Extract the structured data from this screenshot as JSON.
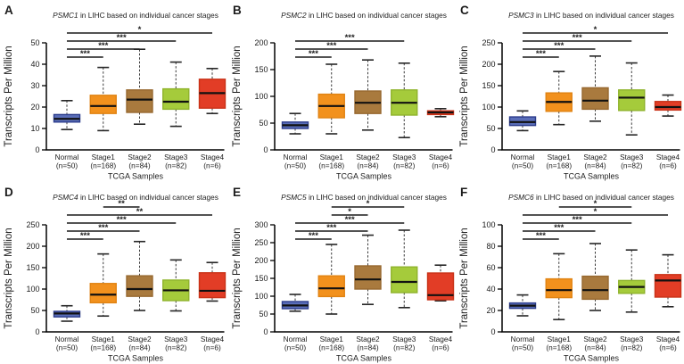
{
  "figure": {
    "background": "#ffffff",
    "ylabel": "Transcripts Per Million",
    "xlabel": "TCGA Samples",
    "title_suffix": " in LIHC based on individual cancer stages",
    "categories": [
      {
        "name": "Normal",
        "count": "(n=50)"
      },
      {
        "name": "Stage1",
        "count": "(n=168)"
      },
      {
        "name": "Stage2",
        "count": "(n=84)"
      },
      {
        "name": "Stage3",
        "count": "(n=82)"
      },
      {
        "name": "Stage4",
        "count": "(n=6)"
      }
    ],
    "box_colors": [
      {
        "label": "normal",
        "fill": "#5a6eb9",
        "stroke": "#2c3c8c"
      },
      {
        "label": "stage1",
        "fill": "#f2911d",
        "stroke": "#e08312"
      },
      {
        "label": "stage2",
        "fill": "#a97a3e",
        "stroke": "#97682f"
      },
      {
        "label": "stage3",
        "fill": "#a5cb3b",
        "stroke": "#8fb32c"
      },
      {
        "label": "stage4",
        "fill": "#e23d26",
        "stroke": "#c93218"
      }
    ]
  },
  "chart_data": [
    {
      "type": "box",
      "panel": "A",
      "gene": "PSMC1",
      "title": "PSMC1 in LIHC based on individual cancer stages",
      "xlabel": "TCGA Samples",
      "ylabel": "Transcripts Per Million",
      "ylim": [
        0,
        50
      ],
      "yticks": [
        0,
        10,
        20,
        30,
        40,
        50
      ],
      "categories": [
        "Normal (n=50)",
        "Stage1 (n=168)",
        "Stage2 (n=84)",
        "Stage3 (n=82)",
        "Stage4 (n=6)"
      ],
      "boxes": [
        {
          "group": "Normal",
          "low": 9.5,
          "q1": 13,
          "median": 14.5,
          "q3": 16.5,
          "high": 23
        },
        {
          "group": "Stage1",
          "low": 9,
          "q1": 17,
          "median": 20.5,
          "q3": 25.5,
          "high": 38.5
        },
        {
          "group": "Stage2",
          "low": 12,
          "q1": 17.5,
          "median": 23.5,
          "q3": 28,
          "high": 47
        },
        {
          "group": "Stage3",
          "low": 11,
          "q1": 19,
          "median": 22.5,
          "q3": 28.5,
          "high": 41
        },
        {
          "group": "Stage4",
          "low": 17,
          "q1": 19.5,
          "median": 26.5,
          "q3": 33,
          "high": 38
        }
      ],
      "significance": [
        {
          "a": 0,
          "b": 1,
          "label": "***"
        },
        {
          "a": 0,
          "b": 2,
          "label": "***"
        },
        {
          "a": 0,
          "b": 3,
          "label": "***"
        },
        {
          "a": 0,
          "b": 4,
          "label": "*"
        }
      ]
    },
    {
      "type": "box",
      "panel": "B",
      "gene": "PSMC2",
      "title": "PSMC2 in LIHC based on individual cancer stages",
      "xlabel": "TCGA Samples",
      "ylabel": "Transcripts Per Million",
      "ylim": [
        0,
        200
      ],
      "yticks": [
        0,
        50,
        100,
        150,
        200
      ],
      "categories": [
        "Normal (n=50)",
        "Stage1 (n=168)",
        "Stage2 (n=84)",
        "Stage3 (n=82)",
        "Stage4 (n=6)"
      ],
      "boxes": [
        {
          "group": "Normal",
          "low": 30,
          "q1": 40,
          "median": 46,
          "q3": 52,
          "high": 68
        },
        {
          "group": "Stage1",
          "low": 30,
          "q1": 60,
          "median": 82,
          "q3": 104,
          "high": 160
        },
        {
          "group": "Stage2",
          "low": 37,
          "q1": 68,
          "median": 88,
          "q3": 110,
          "high": 168
        },
        {
          "group": "Stage3",
          "low": 23,
          "q1": 65,
          "median": 88,
          "q3": 112,
          "high": 162
        },
        {
          "group": "Stage4",
          "low": 62,
          "q1": 66,
          "median": 70,
          "q3": 73,
          "high": 77
        }
      ],
      "significance": [
        {
          "a": 0,
          "b": 1,
          "label": "***"
        },
        {
          "a": 0,
          "b": 2,
          "label": "***"
        },
        {
          "a": 0,
          "b": 3,
          "label": "***"
        }
      ]
    },
    {
      "type": "box",
      "panel": "C",
      "gene": "PSMC3",
      "title": "PSMC3 in LIHC based on individual cancer stages",
      "xlabel": "TCGA Samples",
      "ylabel": "Transcripts Per Million",
      "ylim": [
        0,
        250
      ],
      "yticks": [
        0,
        50,
        100,
        150,
        200,
        250
      ],
      "categories": [
        "Normal (n=50)",
        "Stage1 (n=168)",
        "Stage2 (n=84)",
        "Stage3 (n=82)",
        "Stage4 (n=6)"
      ],
      "boxes": [
        {
          "group": "Normal",
          "low": 45,
          "q1": 57,
          "median": 65,
          "q3": 77,
          "high": 91
        },
        {
          "group": "Stage1",
          "low": 59,
          "q1": 90,
          "median": 112,
          "q3": 133,
          "high": 183
        },
        {
          "group": "Stage2",
          "low": 67,
          "q1": 95,
          "median": 115,
          "q3": 145,
          "high": 219
        },
        {
          "group": "Stage3",
          "low": 35,
          "q1": 92,
          "median": 122,
          "q3": 140,
          "high": 203
        },
        {
          "group": "Stage4",
          "low": 79,
          "q1": 93,
          "median": 100,
          "q3": 113,
          "high": 128
        }
      ],
      "significance": [
        {
          "a": 0,
          "b": 1,
          "label": "***"
        },
        {
          "a": 0,
          "b": 2,
          "label": "***"
        },
        {
          "a": 0,
          "b": 3,
          "label": "***"
        },
        {
          "a": 0,
          "b": 4,
          "label": "*"
        }
      ]
    },
    {
      "type": "box",
      "panel": "D",
      "gene": "PSMC4",
      "title": "PSMC4 in LIHC based on individual cancer stages",
      "xlabel": "TCGA Samples",
      "ylabel": "Transcripts Per Million",
      "ylim": [
        0,
        250
      ],
      "yticks": [
        0,
        50,
        100,
        150,
        200,
        250
      ],
      "categories": [
        "Normal (n=50)",
        "Stage1 (n=168)",
        "Stage2 (n=84)",
        "Stage3 (n=82)",
        "Stage4 (n=6)"
      ],
      "boxes": [
        {
          "group": "Normal",
          "low": 25,
          "q1": 35,
          "median": 43,
          "q3": 48,
          "high": 61
        },
        {
          "group": "Stage1",
          "low": 37,
          "q1": 68,
          "median": 87,
          "q3": 113,
          "high": 182
        },
        {
          "group": "Stage2",
          "low": 50,
          "q1": 83,
          "median": 100,
          "q3": 131,
          "high": 211
        },
        {
          "group": "Stage3",
          "low": 49,
          "q1": 73,
          "median": 97,
          "q3": 121,
          "high": 168
        },
        {
          "group": "Stage4",
          "low": 72,
          "q1": 80,
          "median": 96,
          "q3": 138,
          "high": 162
        }
      ],
      "significance": [
        {
          "a": 0,
          "b": 1,
          "label": "***"
        },
        {
          "a": 0,
          "b": 2,
          "label": "***"
        },
        {
          "a": 0,
          "b": 3,
          "label": "***"
        },
        {
          "a": 0,
          "b": 4,
          "label": "**"
        },
        {
          "a": 1,
          "b": 2,
          "label": "**"
        }
      ]
    },
    {
      "type": "box",
      "panel": "E",
      "gene": "PSMC5",
      "title": "PSMC5 in LIHC based on individual cancer stages",
      "xlabel": "TCGA Samples",
      "ylabel": "Transcripts Per Million",
      "ylim": [
        0,
        300
      ],
      "yticks": [
        0,
        50,
        100,
        150,
        200,
        250,
        300
      ],
      "categories": [
        "Normal (n=50)",
        "Stage1 (n=168)",
        "Stage2 (n=84)",
        "Stage3 (n=82)",
        "Stage4 (n=6)"
      ],
      "boxes": [
        {
          "group": "Normal",
          "low": 58,
          "q1": 65,
          "median": 74,
          "q3": 85,
          "high": 105
        },
        {
          "group": "Stage1",
          "low": 50,
          "q1": 99,
          "median": 122,
          "q3": 157,
          "high": 245
        },
        {
          "group": "Stage2",
          "low": 77,
          "q1": 120,
          "median": 147,
          "q3": 185,
          "high": 271
        },
        {
          "group": "Stage3",
          "low": 68,
          "q1": 110,
          "median": 140,
          "q3": 182,
          "high": 285
        },
        {
          "group": "Stage4",
          "low": 87,
          "q1": 90,
          "median": 103,
          "q3": 165,
          "high": 187
        }
      ],
      "significance": [
        {
          "a": 0,
          "b": 1,
          "label": "***"
        },
        {
          "a": 0,
          "b": 2,
          "label": "***"
        },
        {
          "a": 0,
          "b": 3,
          "label": "***"
        },
        {
          "a": 1,
          "b": 2,
          "label": "*"
        },
        {
          "a": 1,
          "b": 3,
          "label": "*"
        }
      ]
    },
    {
      "type": "box",
      "panel": "F",
      "gene": "PSMC6",
      "title": "PSMC6 in LIHC based on individual cancer stages",
      "xlabel": "TCGA Samples",
      "ylabel": "Transcripts Per Million",
      "ylim": [
        0,
        100
      ],
      "yticks": [
        0,
        20,
        40,
        60,
        80,
        100
      ],
      "categories": [
        "Normal (n=50)",
        "Stage1 (n=168)",
        "Stage2 (n=84)",
        "Stage3 (n=82)",
        "Stage4 (n=6)"
      ],
      "boxes": [
        {
          "group": "Normal",
          "low": 15,
          "q1": 22,
          "median": 24.5,
          "q3": 27,
          "high": 34.5
        },
        {
          "group": "Stage1",
          "low": 11.5,
          "q1": 32,
          "median": 39,
          "q3": 49.5,
          "high": 73
        },
        {
          "group": "Stage2",
          "low": 20,
          "q1": 30.5,
          "median": 39,
          "q3": 52,
          "high": 82.5
        },
        {
          "group": "Stage3",
          "low": 18.5,
          "q1": 36,
          "median": 42,
          "q3": 48,
          "high": 76.5
        },
        {
          "group": "Stage4",
          "low": 23.5,
          "q1": 32.5,
          "median": 48,
          "q3": 53.5,
          "high": 72
        }
      ],
      "significance": [
        {
          "a": 0,
          "b": 1,
          "label": "***"
        },
        {
          "a": 0,
          "b": 2,
          "label": "***"
        },
        {
          "a": 0,
          "b": 3,
          "label": "***"
        },
        {
          "a": 0,
          "b": 4,
          "label": "*"
        },
        {
          "a": 1,
          "b": 3,
          "label": "*"
        }
      ]
    }
  ]
}
